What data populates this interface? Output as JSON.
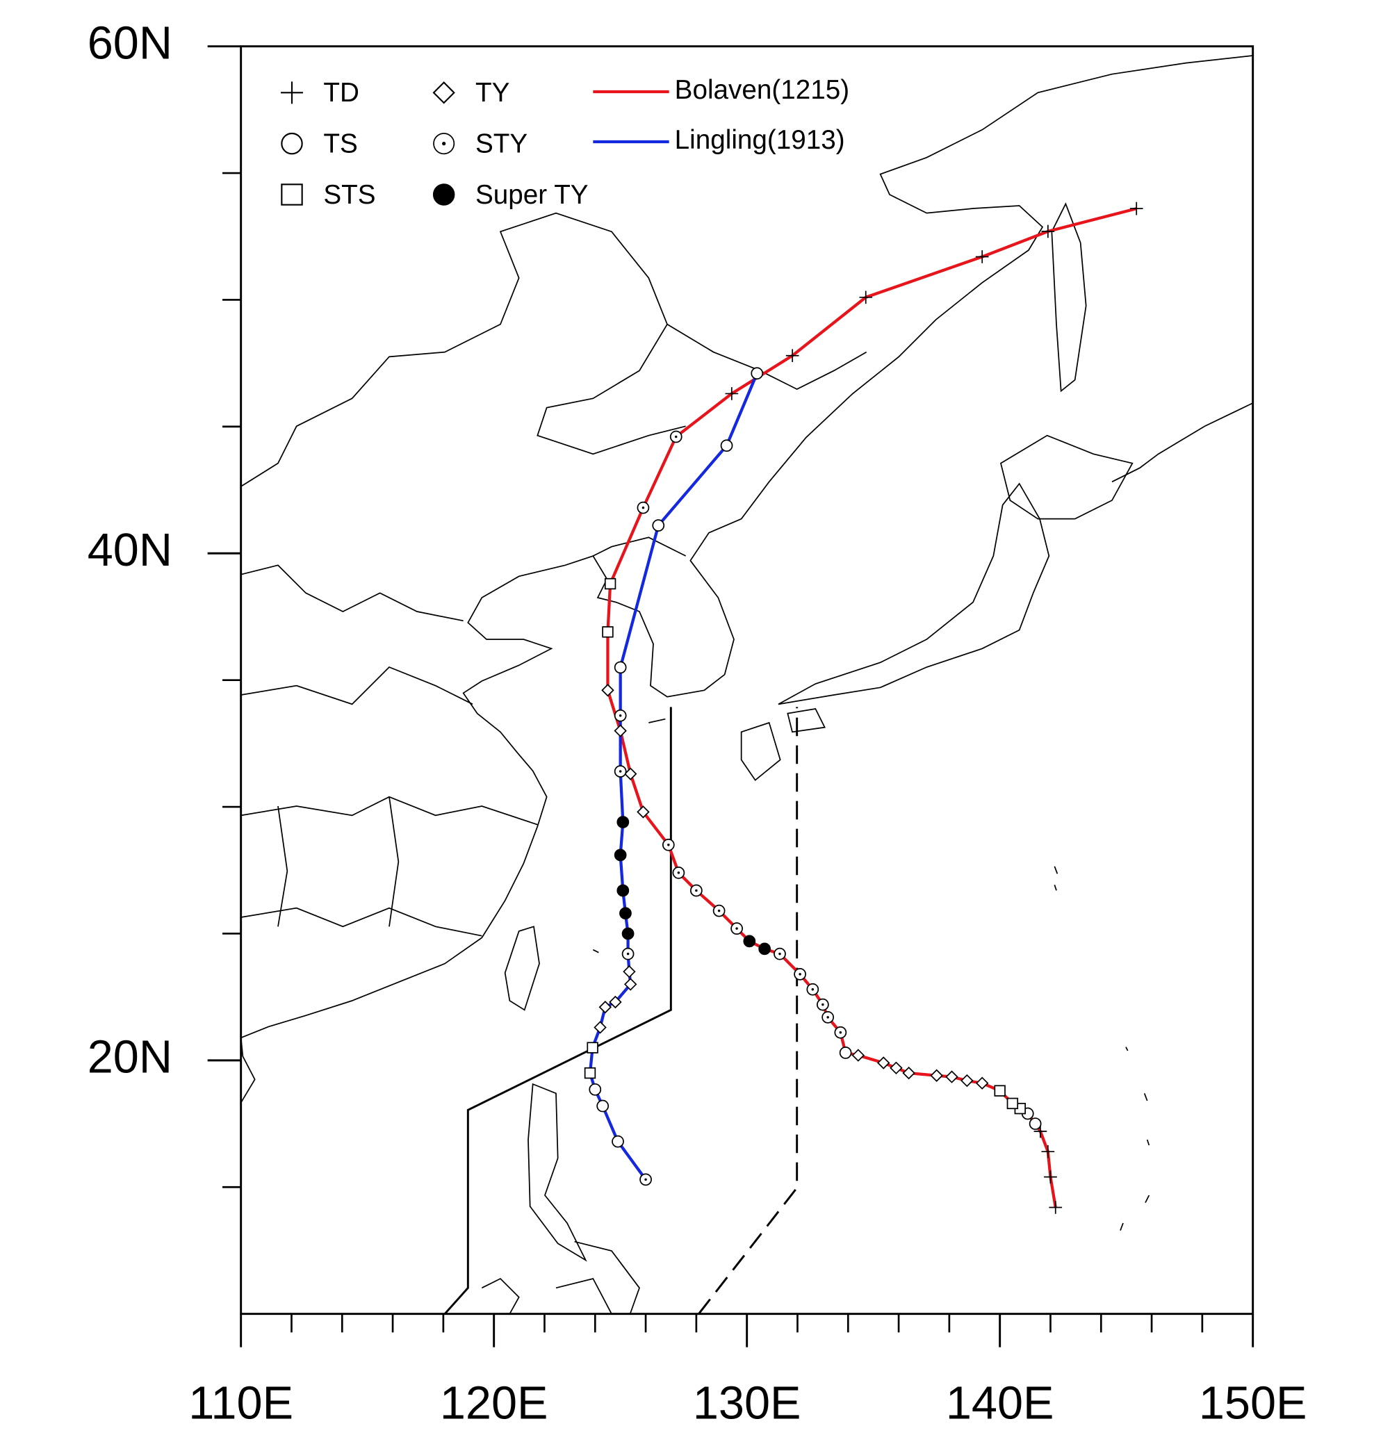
{
  "chart_data": {
    "type": "map",
    "xlim": [
      110,
      150
    ],
    "ylim": [
      10,
      60
    ],
    "xticks": [
      {
        "value": 110,
        "label": "110E"
      },
      {
        "value": 120,
        "label": "120E"
      },
      {
        "value": 130,
        "label": "130E"
      },
      {
        "value": 140,
        "label": "140E"
      },
      {
        "value": 150,
        "label": "150E"
      }
    ],
    "yticks": [
      {
        "value": 20,
        "label": "20N"
      },
      {
        "value": 40,
        "label": "40N"
      },
      {
        "value": 60,
        "label": "60N"
      }
    ],
    "xminorticks": [
      112,
      114,
      116,
      118,
      122,
      124,
      126,
      128,
      132,
      134,
      136,
      138,
      142,
      144,
      146,
      148
    ],
    "yminorticks": [
      15,
      25,
      30,
      35,
      45,
      50,
      55
    ],
    "intensity_legend": [
      {
        "label": "TD",
        "symbol": "plus"
      },
      {
        "label": "TS",
        "symbol": "circle"
      },
      {
        "label": "STS",
        "symbol": "square"
      },
      {
        "label": "TY",
        "symbol": "diamond"
      },
      {
        "label": "STY",
        "symbol": "dotcircle"
      },
      {
        "label": "Super TY",
        "symbol": "filled"
      }
    ],
    "series": [
      {
        "name": "Bolaven(1215)",
        "color": "#e8141c",
        "x": [
          142.2,
          142.0,
          141.9,
          141.6,
          141.4,
          141.1,
          140.8,
          140.5,
          140.0,
          139.3,
          138.7,
          138.1,
          137.5,
          136.4,
          135.9,
          135.4,
          134.4,
          133.9,
          133.7,
          133.2,
          133.0,
          132.6,
          132.1,
          131.3,
          130.7,
          130.1,
          129.6,
          128.9,
          128.0,
          127.3,
          126.9,
          125.9,
          125.4,
          125.0,
          124.5,
          124.5,
          124.6,
          125.9,
          127.2,
          129.4,
          131.8,
          134.7,
          139.3,
          141.9,
          145.4
        ],
        "y": [
          14.2,
          15.4,
          16.4,
          17.2,
          17.5,
          17.9,
          18.1,
          18.3,
          18.8,
          19.1,
          19.2,
          19.35,
          19.4,
          19.5,
          19.7,
          19.9,
          20.2,
          20.3,
          21.1,
          21.7,
          22.2,
          22.8,
          23.4,
          24.2,
          24.4,
          24.7,
          25.2,
          25.9,
          26.7,
          27.4,
          28.5,
          29.8,
          31.3,
          33.0,
          34.6,
          36.9,
          38.8,
          41.8,
          44.6,
          46.3,
          47.8,
          50.1,
          51.7,
          52.7,
          53.6
        ],
        "intensity": [
          "TD",
          "TD",
          "TD",
          "TD",
          "TS",
          "TS",
          "STS",
          "STS",
          "STS",
          "TY",
          "TY",
          "TY",
          "TY",
          "TY",
          "TY",
          "TY",
          "TY",
          "TS",
          "STY",
          "STY",
          "STY",
          "STY",
          "STY",
          "STY",
          "Super TY",
          "Super TY",
          "STY",
          "STY",
          "STY",
          "STY",
          "STY",
          "TY",
          "TY",
          "TY",
          "TY",
          "STS",
          "STS",
          "STY",
          "STY",
          "TD",
          "TD",
          "TD",
          "TD",
          "TD",
          "TD"
        ]
      },
      {
        "name": "Lingling(1913)",
        "color": "#1428e0",
        "x": [
          126.0,
          124.9,
          124.3,
          124.0,
          123.8,
          123.9,
          124.2,
          124.4,
          124.8,
          125.4,
          125.35,
          125.3,
          125.3,
          125.2,
          125.1,
          125.0,
          125.1,
          125.0,
          125.0,
          125.0,
          126.5,
          129.2,
          130.4
        ],
        "y": [
          15.3,
          16.8,
          18.2,
          18.85,
          19.5,
          20.5,
          21.3,
          22.1,
          22.3,
          23.0,
          23.5,
          24.2,
          25.0,
          25.8,
          26.7,
          28.1,
          29.4,
          31.4,
          33.6,
          35.5,
          41.1,
          44.25,
          47.1
        ],
        "intensity": [
          "STY",
          "TS",
          "TS",
          "TS",
          "STS",
          "STS",
          "TY",
          "TY",
          "TY",
          "TY",
          "TY",
          "STY",
          "Super TY",
          "Super TY",
          "Super TY",
          "Super TY",
          "Super TY",
          "STY",
          "STY",
          "TS",
          "TS",
          "TS",
          "TS"
        ]
      }
    ]
  }
}
